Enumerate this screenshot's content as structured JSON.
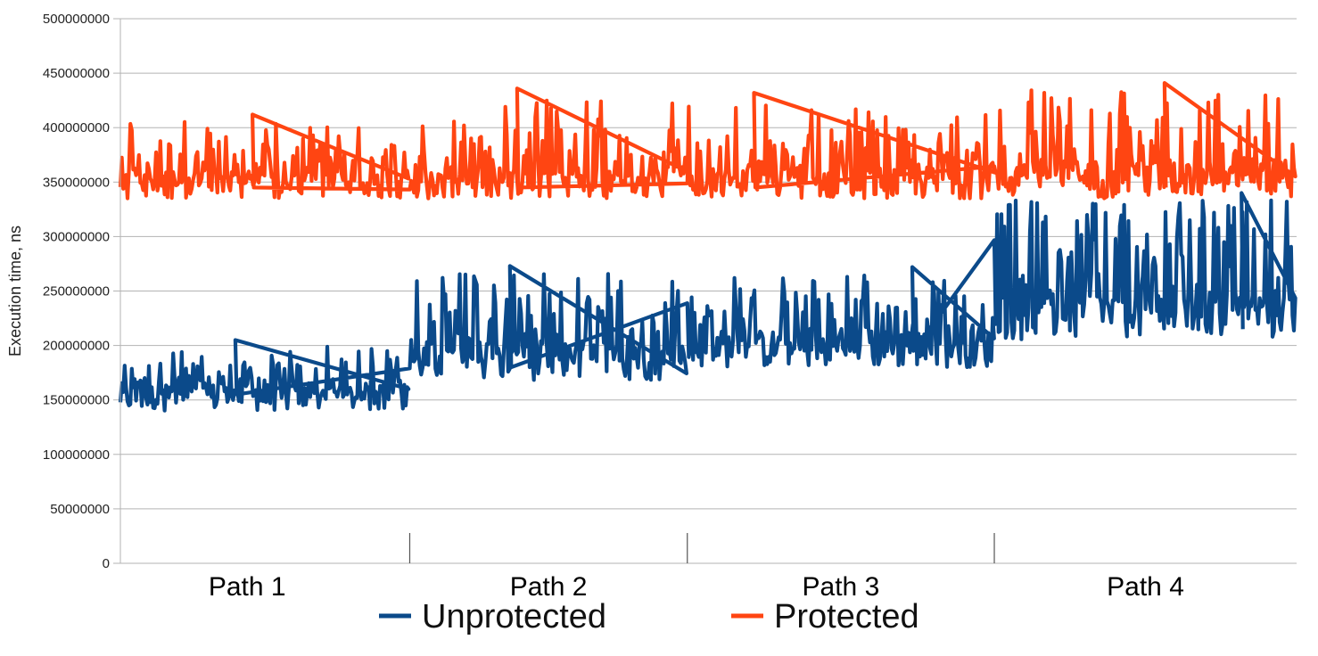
{
  "chart_data": {
    "type": "line",
    "title": "",
    "xlabel": "",
    "ylabel": "Execution time, ns",
    "ylim": [
      0,
      500000000
    ],
    "yticks": [
      "0",
      "50000000",
      "100000000",
      "150000000",
      "200000000",
      "250000000",
      "300000000",
      "350000000",
      "400000000",
      "450000000",
      "500000000"
    ],
    "grid": true,
    "legend_position": "bottom",
    "segments": [
      {
        "label": "Path 1",
        "start": 0,
        "end": 0.246
      },
      {
        "label": "Path 2",
        "start": 0.246,
        "end": 0.482
      },
      {
        "label": "Path 3",
        "start": 0.482,
        "end": 0.743
      },
      {
        "label": "Path 4",
        "start": 0.743,
        "end": 1.0
      }
    ],
    "series": [
      {
        "name": "Unprotected",
        "color": "#0b4a8a",
        "ranges": [
          {
            "path": "Path 1",
            "low": 140000000,
            "base": 155000000,
            "high": 205000000,
            "typical_high": 185000000
          },
          {
            "path": "Path 2",
            "low": 168000000,
            "base": 180000000,
            "high": 273000000,
            "typical_high": 250000000
          },
          {
            "path": "Path 3",
            "low": 180000000,
            "base": 195000000,
            "high": 272000000,
            "typical_high": 250000000
          },
          {
            "path": "Path 4",
            "low": 205000000,
            "base": 215000000,
            "high": 340000000,
            "typical_high": 320000000
          }
        ]
      },
      {
        "name": "Protected",
        "color": "#ff4512",
        "ranges": [
          {
            "path": "Path 1",
            "low": 335000000,
            "base": 345000000,
            "high": 412000000,
            "typical_high": 390000000
          },
          {
            "path": "Path 2",
            "low": 335000000,
            "base": 345000000,
            "high": 436000000,
            "typical_high": 400000000
          },
          {
            "path": "Path 3",
            "low": 335000000,
            "base": 345000000,
            "high": 432000000,
            "typical_high": 400000000
          },
          {
            "path": "Path 4",
            "low": 335000000,
            "base": 345000000,
            "high": 441000000,
            "typical_high": 420000000
          }
        ]
      }
    ]
  }
}
